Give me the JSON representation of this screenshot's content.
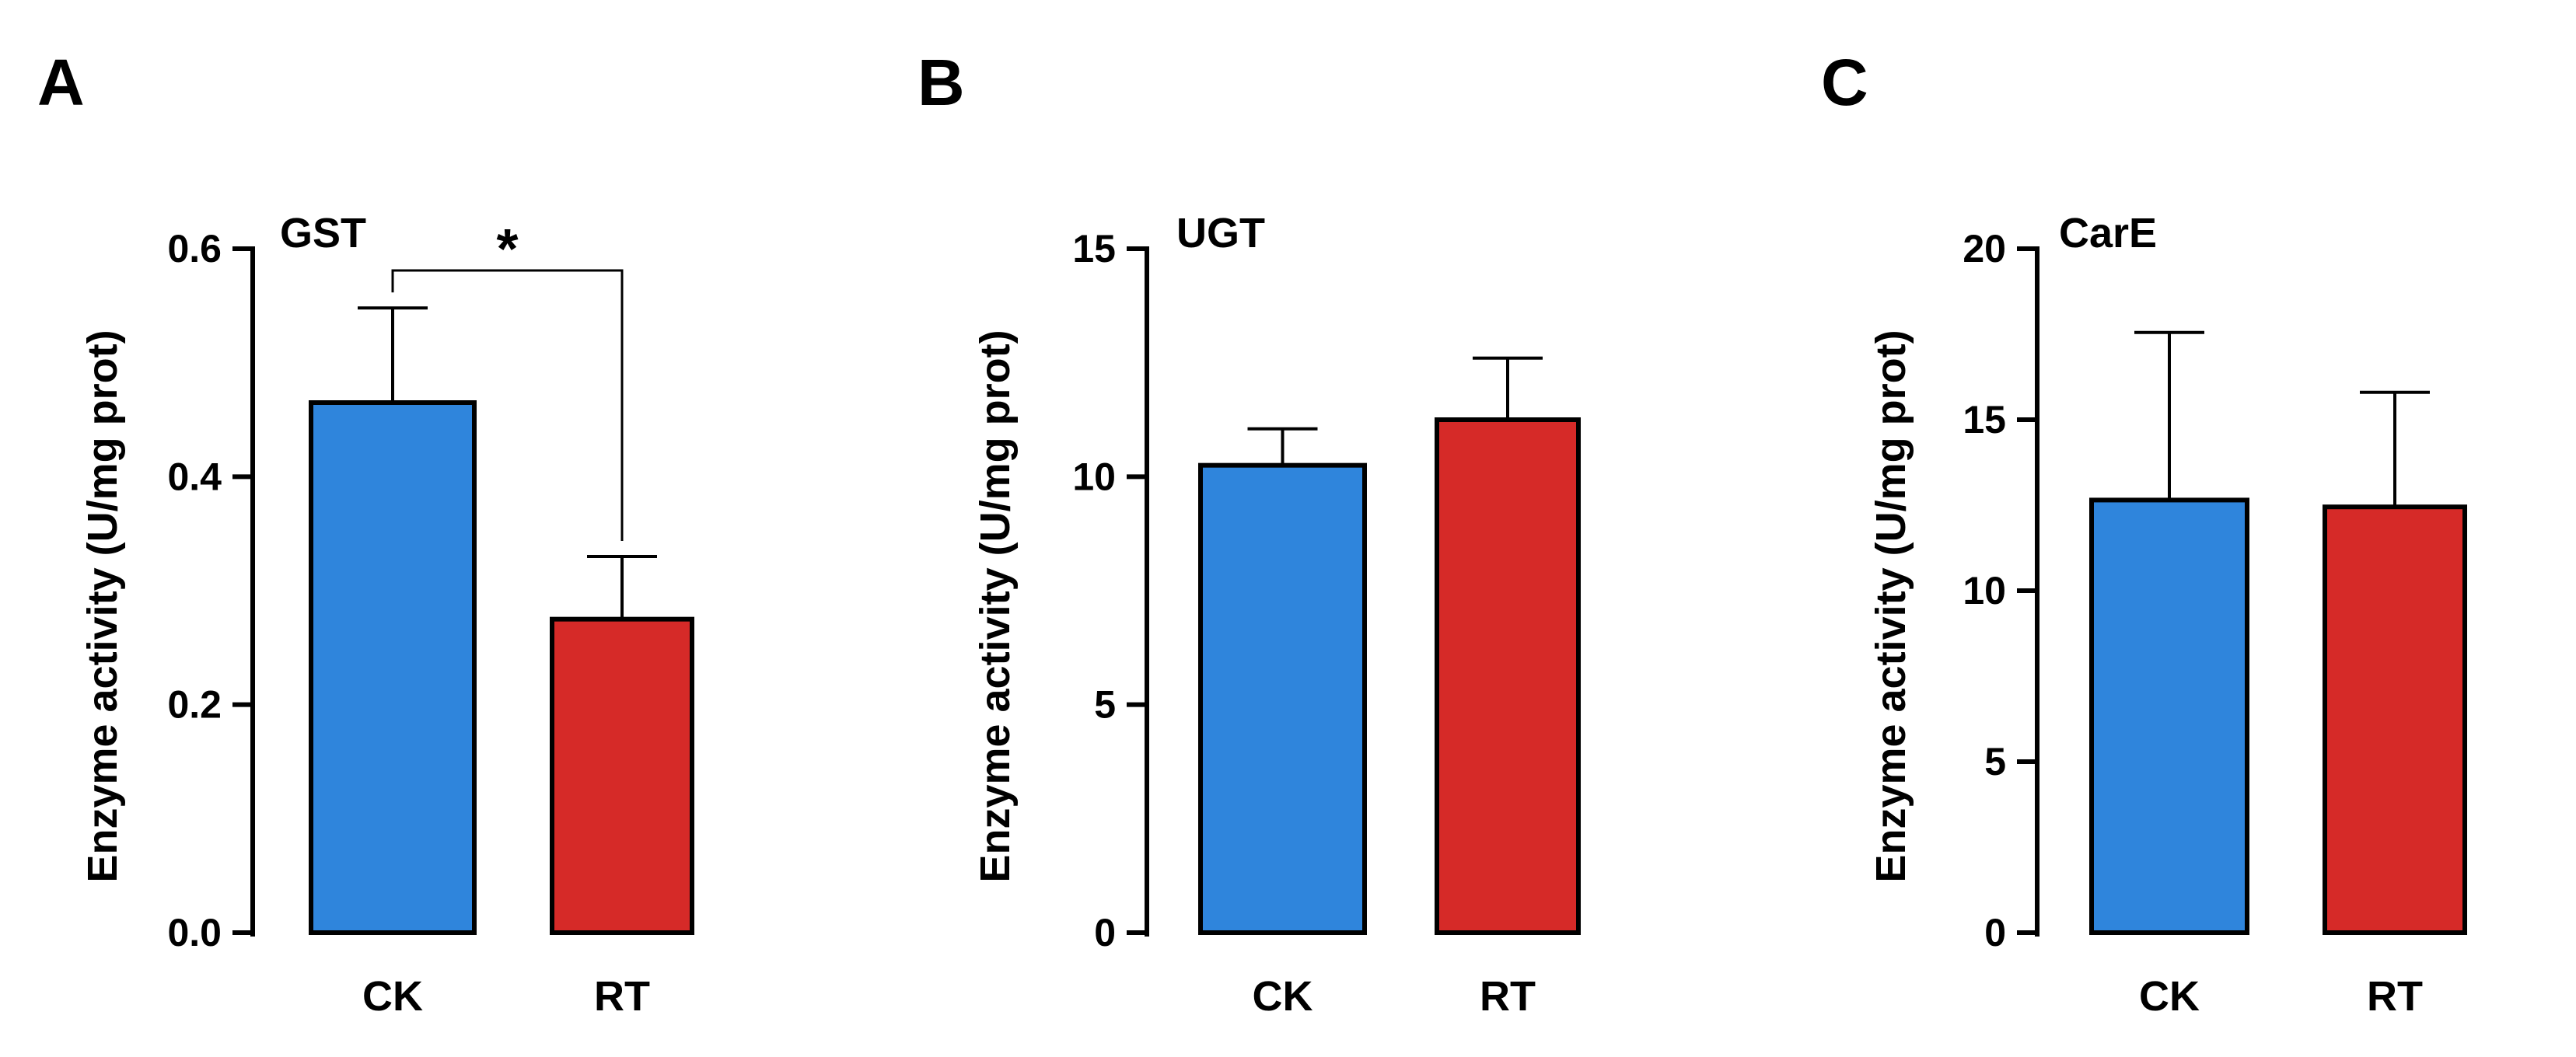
{
  "figure": {
    "panels": [
      {
        "letter": "A",
        "chart_label": "GST",
        "ylabel": "Enzyme activity (U/mg prot)",
        "significance": "*",
        "ticks": [
          "0.0",
          "0.2",
          "0.4",
          "0.6"
        ]
      },
      {
        "letter": "B",
        "chart_label": "UGT",
        "ylabel": "Enzyme activity (U/mg prot)",
        "significance": "",
        "ticks": [
          "0",
          "5",
          "10",
          "15"
        ]
      },
      {
        "letter": "C",
        "chart_label": "CarE",
        "ylabel": "Enzyme activity (U/mg prot)",
        "significance": "",
        "ticks": [
          "0",
          "5",
          "10",
          "15",
          "20"
        ]
      }
    ]
  },
  "chart_data": [
    {
      "type": "bar",
      "panel": "A",
      "title": "GST",
      "xlabel": "",
      "ylabel": "Enzyme activity (U/mg prot)",
      "categories": [
        "CK",
        "RT"
      ],
      "values": [
        0.465,
        0.275
      ],
      "errors": [
        0.083,
        0.055
      ],
      "colors": [
        "#2f85dc",
        "#d62a28"
      ],
      "ylim": [
        0,
        0.6
      ],
      "yticks": [
        0.0,
        0.2,
        0.4,
        0.6
      ],
      "significance": [
        {
          "between": [
            "CK",
            "RT"
          ],
          "label": "*"
        }
      ],
      "grid": false,
      "legend": "none"
    },
    {
      "type": "bar",
      "panel": "B",
      "title": "UGT",
      "xlabel": "",
      "ylabel": "Enzyme activity (U/mg prot)",
      "categories": [
        "CK",
        "RT"
      ],
      "values": [
        10.25,
        11.25
      ],
      "errors": [
        0.8,
        1.35
      ],
      "colors": [
        "#2f85dc",
        "#d62a28"
      ],
      "ylim": [
        0,
        15
      ],
      "yticks": [
        0,
        5,
        10,
        15
      ],
      "significance": [],
      "grid": false,
      "legend": "none"
    },
    {
      "type": "bar",
      "panel": "C",
      "title": "CarE",
      "xlabel": "",
      "ylabel": "Enzyme activity (U/mg prot)",
      "categories": [
        "CK",
        "RT"
      ],
      "values": [
        12.65,
        12.45
      ],
      "errors": [
        4.9,
        3.35
      ],
      "colors": [
        "#2f85dc",
        "#d62a28"
      ],
      "ylim": [
        0,
        20
      ],
      "yticks": [
        0,
        5,
        10,
        15,
        20
      ],
      "significance": [],
      "grid": false,
      "legend": "none"
    }
  ]
}
